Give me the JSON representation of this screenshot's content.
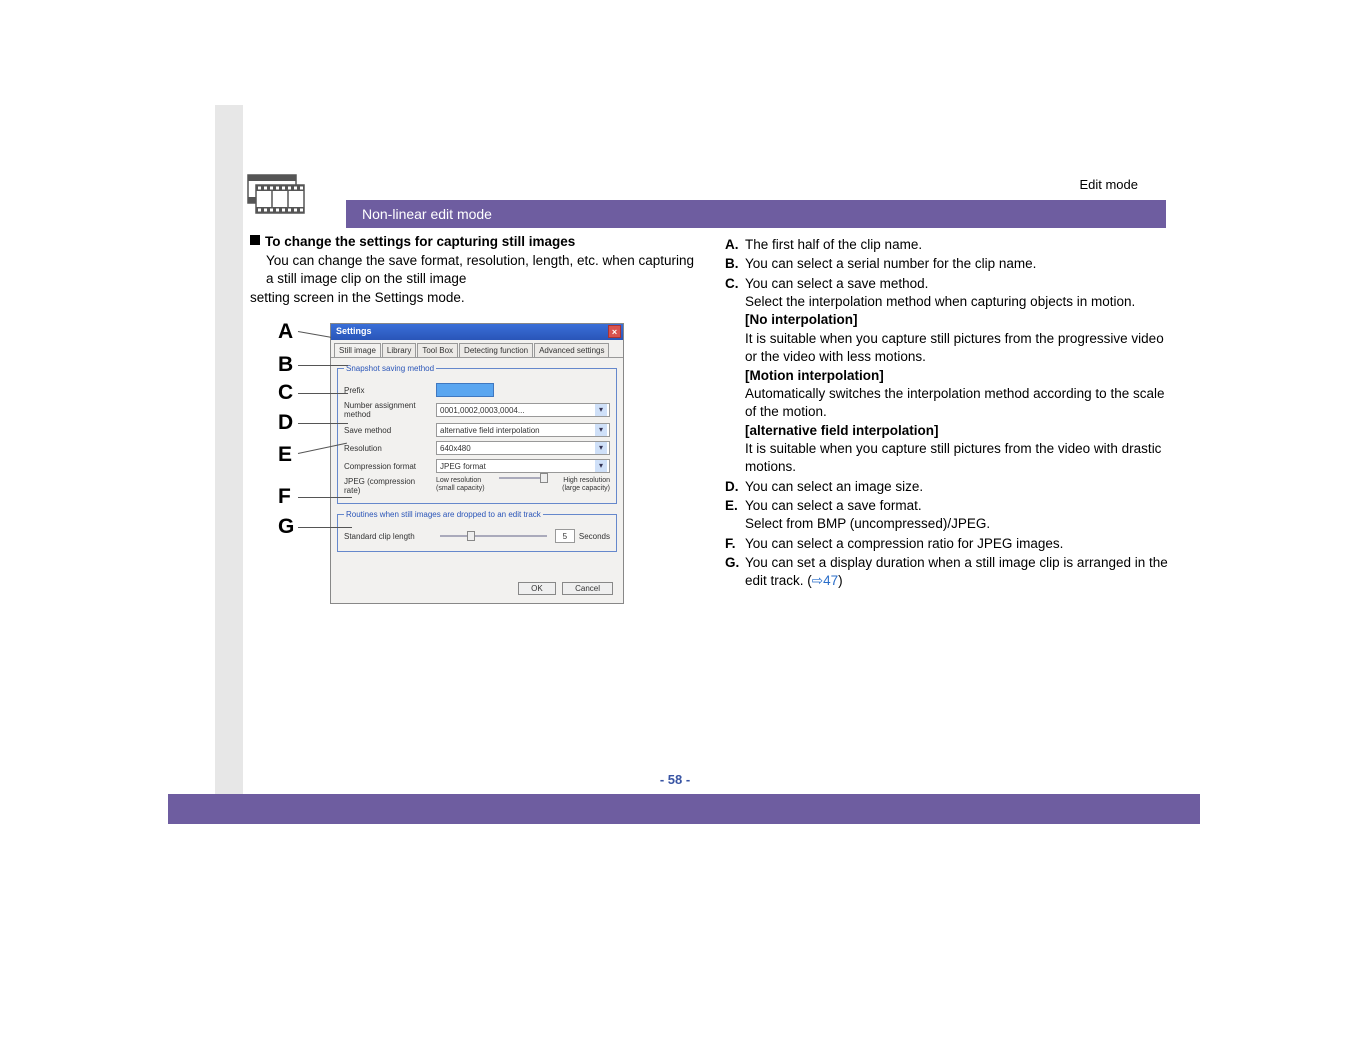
{
  "meta": {
    "top_right": "Edit mode",
    "purple_bar": "Non-linear edit mode",
    "page_number": "- 58 -"
  },
  "left": {
    "heading": "To change the settings for capturing still images",
    "body": "You can change the save format, resolution, length, etc. when capturing a still image clip on the still image setting screen in the Settings mode."
  },
  "letters": [
    "A",
    "B",
    "C",
    "D",
    "E",
    "F",
    "G"
  ],
  "dialog": {
    "title": "Settings",
    "tabs": [
      "Still image",
      "Library",
      "Tool Box",
      "Detecting function",
      "Advanced settings"
    ],
    "group1_legend": "Snapshot saving method",
    "prefix_label": "Prefix",
    "numassign_label": "Number assignment method",
    "numassign_value": "0001,0002,0003,0004...",
    "save_label": "Save method",
    "save_value": "alternative field interpolation",
    "res_label": "Resolution",
    "res_value": "640x480",
    "comp_label": "Compression format",
    "comp_value": "JPEG format",
    "jpeg_label": "JPEG (compression rate)",
    "jpeg_low": "Low resolution (small capacity)",
    "jpeg_high": "High resolution (large capacity)",
    "group2_legend": "Routines when still images are dropped to an edit track",
    "stdlen_label": "Standard clip length",
    "stdlen_value": "5",
    "stdlen_unit": "Seconds",
    "ok": "OK",
    "cancel": "Cancel"
  },
  "right": {
    "items": [
      {
        "letter": "A.",
        "lines": [
          "The first half of the clip name."
        ]
      },
      {
        "letter": "B.",
        "lines": [
          "You can select a serial number for the clip name."
        ]
      },
      {
        "letter": "C.",
        "lines": [
          "You can select a save method.",
          "Select the interpolation method when capturing objects in motion.",
          {
            "bold": "[No interpolation]"
          },
          "It is suitable when you capture still pictures from the progressive video or the video with less motions.",
          {
            "bold": "[Motion interpolation]"
          },
          "Automatically switches the interpolation method according to the scale of the motion.",
          {
            "bold": "[alternative field interpolation]"
          },
          "It is suitable when you capture still pictures from the video with drastic motions."
        ]
      },
      {
        "letter": "D.",
        "lines": [
          "You can select an image size."
        ]
      },
      {
        "letter": "E.",
        "lines": [
          "You can select a save format.",
          "Select from BMP (uncompressed)/JPEG."
        ]
      },
      {
        "letter": "F.",
        "lines": [
          "You can select a compression ratio for JPEG images."
        ]
      },
      {
        "letter": "G.",
        "lines": [
          "You can set a display duration when a still image clip is arranged in the edit track. (",
          {
            "link": "⇒47"
          },
          ")"
        ]
      }
    ]
  }
}
